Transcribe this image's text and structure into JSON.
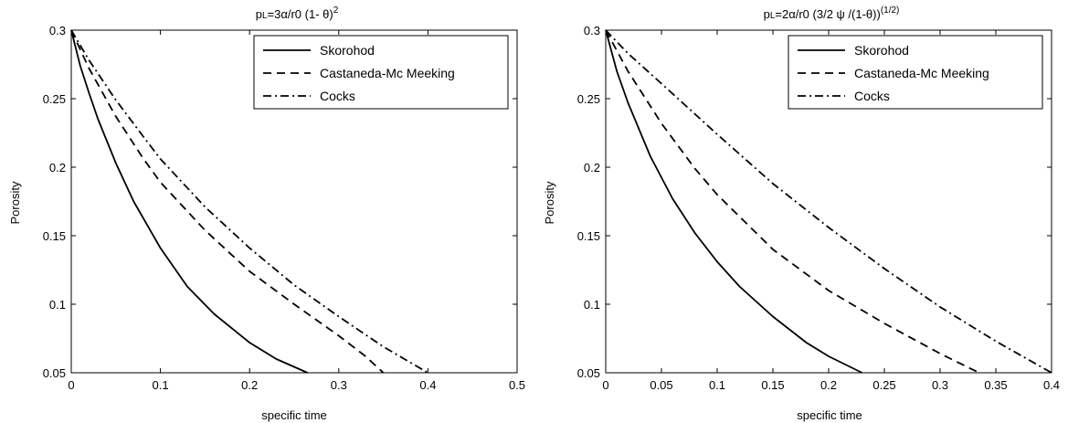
{
  "chart_data": [
    {
      "type": "line",
      "title": {
        "prefix": "p",
        "sub": "L",
        "main": "=3α/r0 (1- θ)",
        "sup": "2"
      },
      "xlabel": "specific time",
      "ylabel": "Porosity",
      "xlim": [
        0,
        0.5
      ],
      "ylim": [
        0.05,
        0.3
      ],
      "xticks": [
        0,
        0.1,
        0.2,
        0.3,
        0.4,
        0.5
      ],
      "xtick_labels": [
        "0",
        "0.1",
        "0.2",
        "0.3",
        "0.4",
        "0.5"
      ],
      "yticks": [
        0.05,
        0.1,
        0.15,
        0.2,
        0.25,
        0.3
      ],
      "ytick_labels": [
        "0.05",
        "0.1",
        "0.15",
        "0.2",
        "0.25",
        "0.3"
      ],
      "grid": false,
      "legend": "top-right",
      "series": [
        {
          "name": "Skorohod",
          "style": "solid",
          "x": [
            0,
            0.01,
            0.02,
            0.03,
            0.05,
            0.07,
            0.1,
            0.13,
            0.16,
            0.2,
            0.23,
            0.265
          ],
          "y": [
            0.3,
            0.274,
            0.254,
            0.235,
            0.203,
            0.175,
            0.141,
            0.113,
            0.093,
            0.072,
            0.06,
            0.05
          ]
        },
        {
          "name": "Castaneda-Mc Meeking",
          "style": "dashed",
          "x": [
            0,
            0.02,
            0.05,
            0.08,
            0.1,
            0.15,
            0.2,
            0.25,
            0.3,
            0.33,
            0.35
          ],
          "y": [
            0.3,
            0.272,
            0.237,
            0.207,
            0.189,
            0.154,
            0.124,
            0.1,
            0.077,
            0.062,
            0.05
          ]
        },
        {
          "name": "Cocks",
          "style": "dashdot",
          "x": [
            0,
            0.02,
            0.05,
            0.08,
            0.1,
            0.15,
            0.2,
            0.25,
            0.3,
            0.35,
            0.4
          ],
          "y": [
            0.3,
            0.278,
            0.249,
            0.223,
            0.206,
            0.171,
            0.141,
            0.114,
            0.091,
            0.069,
            0.05
          ]
        }
      ]
    },
    {
      "type": "line",
      "title": {
        "prefix": "p",
        "sub": "L",
        "main": "=2α/r0 (3/2 ψ   /(1-θ))",
        "sup": "(1/2)"
      },
      "xlabel": "specific time",
      "ylabel": "Porosity",
      "xlim": [
        0,
        0.4
      ],
      "ylim": [
        0.05,
        0.3
      ],
      "xticks": [
        0,
        0.05,
        0.1,
        0.15,
        0.2,
        0.25,
        0.3,
        0.35,
        0.4
      ],
      "xtick_labels": [
        "0",
        "0.05",
        "0.1",
        "0.15",
        "0.2",
        "0.25",
        "0.3",
        "0.35",
        "0.4"
      ],
      "yticks": [
        0.05,
        0.1,
        0.15,
        0.2,
        0.25,
        0.3
      ],
      "ytick_labels": [
        "0.05",
        "0.1",
        "0.15",
        "0.2",
        "0.25",
        "0.3"
      ],
      "grid": false,
      "legend": "top-right",
      "series": [
        {
          "name": "Skorohod",
          "style": "solid",
          "x": [
            0,
            0.01,
            0.02,
            0.04,
            0.06,
            0.08,
            0.1,
            0.12,
            0.15,
            0.18,
            0.2,
            0.23
          ],
          "y": [
            0.3,
            0.27,
            0.247,
            0.208,
            0.177,
            0.152,
            0.131,
            0.113,
            0.091,
            0.072,
            0.062,
            0.05
          ]
        },
        {
          "name": "Castaneda-Mc Meeking",
          "style": "dashed",
          "x": [
            0,
            0.02,
            0.05,
            0.08,
            0.1,
            0.15,
            0.2,
            0.25,
            0.3,
            0.335
          ],
          "y": [
            0.3,
            0.27,
            0.232,
            0.199,
            0.18,
            0.14,
            0.11,
            0.086,
            0.064,
            0.05
          ]
        },
        {
          "name": "Cocks",
          "style": "dashdot",
          "x": [
            0,
            0.02,
            0.05,
            0.1,
            0.15,
            0.2,
            0.25,
            0.3,
            0.35,
            0.4
          ],
          "y": [
            0.3,
            0.283,
            0.261,
            0.224,
            0.188,
            0.156,
            0.126,
            0.098,
            0.073,
            0.05
          ]
        }
      ]
    }
  ]
}
